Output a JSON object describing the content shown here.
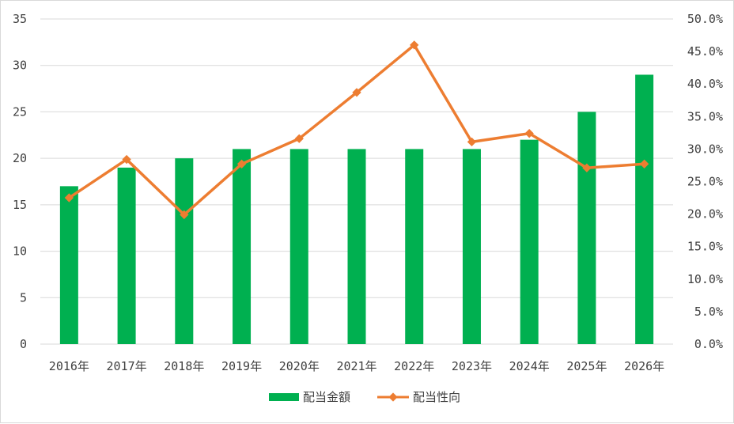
{
  "chart_data": {
    "type": "bar",
    "categories": [
      "2016年",
      "2017年",
      "2018年",
      "2019年",
      "2020年",
      "2021年",
      "2022年",
      "2023年",
      "2024年",
      "2025年",
      "2026年"
    ],
    "series": [
      {
        "name": "配当金額",
        "type": "bar",
        "axis": "left",
        "values": [
          17,
          19,
          20,
          21,
          21,
          21,
          21,
          21,
          22,
          25,
          29
        ]
      },
      {
        "name": "配当性向",
        "type": "line",
        "axis": "right",
        "values": [
          0.225,
          0.284,
          0.199,
          0.277,
          0.316,
          0.387,
          0.46,
          0.311,
          0.324,
          0.271,
          0.277
        ]
      }
    ],
    "y_left": {
      "min": 0,
      "max": 35,
      "step": 5,
      "tick_labels": [
        "0",
        "5",
        "10",
        "15",
        "20",
        "25",
        "30",
        "35"
      ]
    },
    "y_right": {
      "min": 0,
      "max": 0.5,
      "step": 0.05,
      "tick_labels": [
        "0.0%",
        "5.0%",
        "10.0%",
        "15.0%",
        "20.0%",
        "25.0%",
        "30.0%",
        "35.0%",
        "40.0%",
        "45.0%",
        "50.0%"
      ]
    },
    "grid": true,
    "legend_position": "bottom",
    "colors": {
      "bar": "#00b050",
      "line": "#ed7d31",
      "grid": "#d9d9d9"
    }
  }
}
